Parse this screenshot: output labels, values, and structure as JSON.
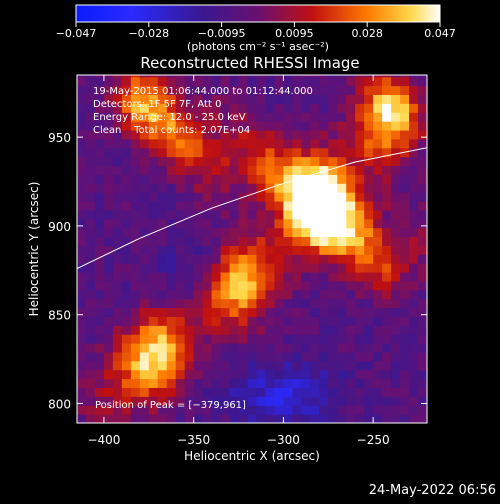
{
  "colorbar": {
    "ticks": [
      "−0.047",
      "−0.028",
      "−0.0095",
      "0.0095",
      "0.028",
      "0.047"
    ],
    "unit_label": "(photons cm⁻² s⁻¹ asec⁻²)",
    "range": [
      -0.047,
      0.047
    ]
  },
  "chart_data": {
    "type": "heatmap",
    "title": "Reconstructed RHESSI Image",
    "xlabel": "Heliocentric X (arcsec)",
    "ylabel": "Heliocentric Y (arcsec)",
    "xlim": [
      -415,
      -220
    ],
    "ylim": [
      789,
      985
    ],
    "x_ticks": [
      -400,
      -350,
      -300,
      -250
    ],
    "x_tick_labels": [
      "−400",
      "−350",
      "−300",
      "−250"
    ],
    "y_ticks": [
      800,
      850,
      900,
      950
    ],
    "y_tick_labels": [
      "800",
      "850",
      "900",
      "950"
    ],
    "annotations": [
      "19-May-2015 01:06:44.000 to 01:12:44.000",
      "Detectors: 1F 5F 7F, Att 0",
      "Energy Range: 12.0 - 25.0 keV",
      "Clean    Total counts: 2.07E+04"
    ],
    "peak_label": "Position of Peak = [−379,961]",
    "peak_position": [
      -379,
      961
    ],
    "limb_curve": {
      "x": [
        -415,
        -380,
        -340,
        -300,
        -260,
        -220
      ],
      "y": [
        876,
        893,
        910,
        924,
        936,
        944
      ]
    },
    "emission_ridges": [
      {
        "x": [
          -375,
          -355,
          -330,
          -305,
          -285,
          -265,
          -240
        ],
        "y": [
          970,
          955,
          940,
          925,
          915,
          902,
          885
        ],
        "value": 0.04
      },
      {
        "x": [
          -390,
          -370,
          -340,
          -310,
          -285,
          -265,
          -240
        ],
        "y": [
          810,
          830,
          855,
          880,
          905,
          930,
          965
        ],
        "value": 0.045
      }
    ],
    "colormap": "blue-purple-red-yellow-white"
  },
  "timestamp": "24-May-2022 06:56"
}
